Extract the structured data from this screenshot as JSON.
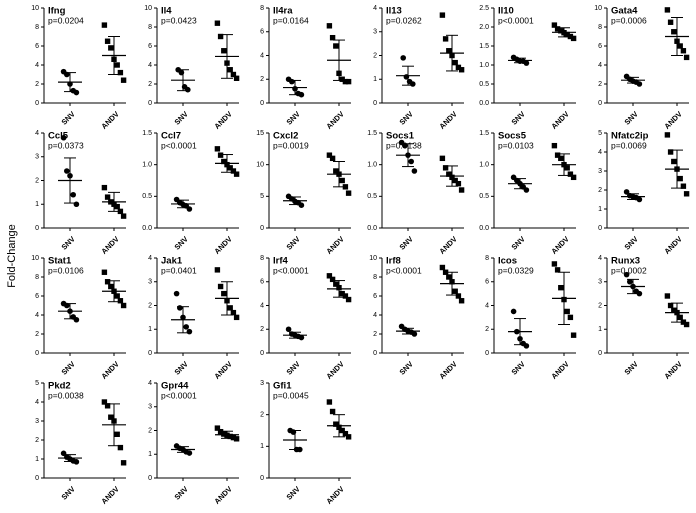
{
  "ylabel": "Fold-Change",
  "chart_data": [
    {
      "type": "dotplot",
      "title": "Ifng",
      "annotation": "p=0.0204",
      "categories": [
        "SNV",
        "ANDV"
      ],
      "markers": [
        "circle",
        "square"
      ],
      "color": "#000000",
      "ylim": [
        0,
        10
      ],
      "yticks": [
        0,
        2,
        4,
        6,
        8,
        10
      ],
      "values": [
        [
          3.3,
          3.0,
          2.0,
          1.3,
          1.1
        ],
        [
          8.2,
          6.5,
          5.8,
          4.6,
          4.0,
          3.2,
          2.4
        ]
      ],
      "means": [
        2.2,
        5.0
      ],
      "sd": [
        1.0,
        2.0
      ]
    },
    {
      "type": "dotplot",
      "title": "Il4",
      "annotation": "p=0.0423",
      "categories": [
        "SNV",
        "ANDV"
      ],
      "markers": [
        "circle",
        "square"
      ],
      "color": "#000000",
      "ylim": [
        0,
        10
      ],
      "yticks": [
        0,
        2,
        4,
        6,
        8,
        10
      ],
      "values": [
        [
          3.5,
          3.2,
          1.7,
          1.4
        ],
        [
          8.4,
          7.0,
          5.5,
          4.2,
          3.5,
          3.0,
          2.6
        ]
      ],
      "means": [
        2.4,
        4.9
      ],
      "sd": [
        1.1,
        2.3
      ]
    },
    {
      "type": "dotplot",
      "title": "Il4ra",
      "annotation": "p=0.0164",
      "categories": [
        "SNV",
        "ANDV"
      ],
      "markers": [
        "circle",
        "square"
      ],
      "color": "#000000",
      "ylim": [
        0,
        8
      ],
      "yticks": [
        0,
        2,
        4,
        6,
        8
      ],
      "values": [
        [
          2.0,
          1.8,
          1.2,
          0.8,
          0.7
        ],
        [
          6.5,
          5.5,
          4.8,
          2.5,
          2.0,
          1.8,
          1.8
        ]
      ],
      "means": [
        1.3,
        3.6
      ],
      "sd": [
        0.6,
        1.7
      ]
    },
    {
      "type": "dotplot",
      "title": "Il13",
      "annotation": "p=0.0262",
      "categories": [
        "SNV",
        "ANDV"
      ],
      "markers": [
        "circle",
        "square"
      ],
      "color": "#000000",
      "ylim": [
        0,
        4
      ],
      "yticks": [
        0,
        1,
        2,
        3,
        4
      ],
      "values": [
        [
          1.9,
          1.1,
          0.9,
          0.8
        ],
        [
          3.7,
          2.7,
          2.2,
          2.0,
          1.7,
          1.5,
          1.4
        ]
      ],
      "means": [
        1.15,
        2.1
      ],
      "sd": [
        0.4,
        0.75
      ]
    },
    {
      "type": "dotplot",
      "title": "Il10",
      "annotation": "p<0.0001",
      "categories": [
        "SNV",
        "ANDV"
      ],
      "markers": [
        "circle",
        "square"
      ],
      "color": "#000000",
      "ylim": [
        0,
        2.5
      ],
      "yticks": [
        {
          "value": 0,
          "label": "0.0"
        },
        0.5,
        {
          "value": 1,
          "label": "1.0"
        },
        1.5,
        {
          "value": 2,
          "label": "2.0"
        },
        2.5
      ],
      "values": [
        [
          1.2,
          1.15,
          1.1,
          1.1,
          1.05
        ],
        [
          2.05,
          1.95,
          1.9,
          1.85,
          1.8,
          1.75,
          1.7
        ]
      ],
      "means": [
        1.12,
        1.86
      ],
      "sd": [
        0.06,
        0.12
      ]
    },
    {
      "type": "dotplot",
      "title": "Gata4",
      "annotation": "p=0.0006",
      "categories": [
        "SNV",
        "ANDV"
      ],
      "markers": [
        "circle",
        "square"
      ],
      "color": "#000000",
      "ylim": [
        0,
        10
      ],
      "yticks": [
        0,
        2,
        4,
        6,
        8,
        10
      ],
      "values": [
        [
          2.8,
          2.5,
          2.3,
          2.2,
          2.0
        ],
        [
          9.8,
          8.5,
          7.5,
          6.5,
          6.0,
          5.5,
          4.8
        ]
      ],
      "means": [
        2.4,
        7.0
      ],
      "sd": [
        0.3,
        2.0
      ]
    },
    {
      "type": "dotplot",
      "title": "Ccl5",
      "annotation": "p=0.0373",
      "categories": [
        "SNV",
        "ANDV"
      ],
      "markers": [
        "circle",
        "square"
      ],
      "color": "#000000",
      "ylim": [
        0,
        4
      ],
      "yticks": [
        0,
        1,
        2,
        3,
        4
      ],
      "values": [
        [
          3.8,
          2.4,
          2.2,
          1.4,
          1.0
        ],
        [
          1.7,
          1.3,
          1.1,
          1.0,
          0.9,
          0.7,
          0.5
        ]
      ],
      "means": [
        2.0,
        1.1
      ],
      "sd": [
        0.95,
        0.4
      ]
    },
    {
      "type": "dotplot",
      "title": "Ccl7",
      "annotation": "p<0.0001",
      "categories": [
        "SNV",
        "ANDV"
      ],
      "markers": [
        "circle",
        "square"
      ],
      "color": "#000000",
      "ylim": [
        0,
        1.5
      ],
      "yticks": [
        {
          "value": 0,
          "label": "0.0"
        },
        0.5,
        {
          "value": 1,
          "label": "1.0"
        },
        1.5
      ],
      "values": [
        [
          0.45,
          0.4,
          0.37,
          0.35,
          0.3
        ],
        [
          1.25,
          1.15,
          1.05,
          1.0,
          0.95,
          0.9,
          0.85
        ]
      ],
      "means": [
        0.38,
        1.02
      ],
      "sd": [
        0.06,
        0.14
      ]
    },
    {
      "type": "dotplot",
      "title": "Cxcl2",
      "annotation": "p=0.0019",
      "categories": [
        "SNV",
        "ANDV"
      ],
      "markers": [
        "circle",
        "square"
      ],
      "color": "#000000",
      "ylim": [
        0,
        15
      ],
      "yticks": [
        0,
        5,
        10,
        15
      ],
      "values": [
        [
          5.0,
          4.6,
          4.2,
          4.0,
          3.6
        ],
        [
          11.5,
          11.0,
          9.0,
          8.5,
          7.5,
          6.5,
          5.5
        ]
      ],
      "means": [
        4.3,
        8.5
      ],
      "sd": [
        0.6,
        2.0
      ]
    },
    {
      "type": "dotplot",
      "title": "Socs1",
      "annotation": "p=0.0138",
      "categories": [
        "SNV",
        "ANDV"
      ],
      "markers": [
        "circle",
        "square"
      ],
      "color": "#000000",
      "ylim": [
        0,
        1.5
      ],
      "yticks": [
        {
          "value": 0,
          "label": "0.0"
        },
        0.5,
        {
          "value": 1,
          "label": "1.0"
        },
        1.5
      ],
      "values": [
        [
          1.35,
          1.3,
          1.15,
          1.05,
          0.9
        ],
        [
          1.1,
          0.95,
          0.85,
          0.8,
          0.75,
          0.7,
          0.6
        ]
      ],
      "means": [
        1.15,
        0.82
      ],
      "sd": [
        0.18,
        0.16
      ]
    },
    {
      "type": "dotplot",
      "title": "Socs5",
      "annotation": "p=0.0103",
      "categories": [
        "SNV",
        "ANDV"
      ],
      "markers": [
        "circle",
        "square"
      ],
      "color": "#000000",
      "ylim": [
        0,
        1.5
      ],
      "yticks": [
        {
          "value": 0,
          "label": "0.0"
        },
        0.5,
        {
          "value": 1,
          "label": "1.0"
        },
        1.5
      ],
      "values": [
        [
          0.8,
          0.75,
          0.7,
          0.65,
          0.6
        ],
        [
          1.3,
          1.15,
          1.1,
          1.0,
          0.95,
          0.85,
          0.8
        ]
      ],
      "means": [
        0.7,
        1.0
      ],
      "sd": [
        0.08,
        0.17
      ]
    },
    {
      "type": "dotplot",
      "title": "Nfatc2ip",
      "annotation": "p=0.0069",
      "categories": [
        "SNV",
        "ANDV"
      ],
      "markers": [
        "circle",
        "square"
      ],
      "color": "#000000",
      "ylim": [
        0,
        5
      ],
      "yticks": [
        0,
        1,
        2,
        3,
        4,
        5
      ],
      "values": [
        [
          1.9,
          1.7,
          1.65,
          1.6,
          1.5
        ],
        [
          4.9,
          4.0,
          3.5,
          3.1,
          2.6,
          2.2,
          1.8
        ]
      ],
      "means": [
        1.65,
        3.1
      ],
      "sd": [
        0.15,
        1.0
      ]
    },
    {
      "type": "dotplot",
      "title": "Stat1",
      "annotation": "p=0.0106",
      "categories": [
        "SNV",
        "ANDV"
      ],
      "markers": [
        "circle",
        "square"
      ],
      "color": "#000000",
      "ylim": [
        0,
        10
      ],
      "yticks": [
        0,
        2,
        4,
        6,
        8,
        10
      ],
      "values": [
        [
          5.2,
          5.0,
          4.4,
          3.8,
          3.5
        ],
        [
          8.5,
          7.5,
          7.0,
          6.5,
          6.0,
          5.5,
          5.0
        ]
      ],
      "means": [
        4.4,
        6.5
      ],
      "sd": [
        0.8,
        1.1
      ]
    },
    {
      "type": "dotplot",
      "title": "Jak1",
      "annotation": "p=0.0401",
      "categories": [
        "SNV",
        "ANDV"
      ],
      "markers": [
        "circle",
        "square"
      ],
      "color": "#000000",
      "ylim": [
        0,
        4
      ],
      "yticks": [
        0,
        1,
        2,
        3,
        4
      ],
      "values": [
        [
          2.5,
          1.9,
          1.5,
          1.1,
          0.9
        ],
        [
          3.5,
          2.8,
          2.5,
          2.2,
          1.9,
          1.7,
          1.5
        ]
      ],
      "means": [
        1.4,
        2.3
      ],
      "sd": [
        0.55,
        0.7
      ]
    },
    {
      "type": "dotplot",
      "title": "Irf4",
      "annotation": "p<0.0001",
      "categories": [
        "SNV",
        "ANDV"
      ],
      "markers": [
        "circle",
        "square"
      ],
      "color": "#000000",
      "ylim": [
        0,
        8
      ],
      "yticks": [
        0,
        2,
        4,
        6,
        8
      ],
      "values": [
        [
          2.0,
          1.6,
          1.5,
          1.4,
          1.3
        ],
        [
          6.5,
          6.2,
          5.8,
          5.5,
          5.0,
          4.8,
          4.5
        ]
      ],
      "means": [
        1.5,
        5.4
      ],
      "sd": [
        0.25,
        0.7
      ]
    },
    {
      "type": "dotplot",
      "title": "Irf8",
      "annotation": "p<0.0001",
      "categories": [
        "SNV",
        "ANDV"
      ],
      "markers": [
        "circle",
        "square"
      ],
      "color": "#000000",
      "ylim": [
        0,
        10
      ],
      "yticks": [
        0,
        2,
        4,
        6,
        8,
        10
      ],
      "values": [
        [
          2.8,
          2.5,
          2.3,
          2.2,
          2.0
        ],
        [
          9.0,
          8.5,
          8.0,
          7.5,
          6.5,
          6.0,
          5.5
        ]
      ],
      "means": [
        2.3,
        7.3
      ],
      "sd": [
        0.3,
        1.2
      ]
    },
    {
      "type": "dotplot",
      "title": "Icos",
      "annotation": "p=0.0329",
      "categories": [
        "SNV",
        "ANDV"
      ],
      "markers": [
        "circle",
        "square"
      ],
      "color": "#000000",
      "ylim": [
        0,
        8
      ],
      "yticks": [
        0,
        2,
        4,
        6,
        8
      ],
      "values": [
        [
          3.5,
          1.8,
          1.2,
          0.8,
          0.6
        ],
        [
          7.5,
          7.0,
          5.5,
          4.5,
          3.5,
          3.0,
          1.5
        ]
      ],
      "means": [
        1.8,
        4.6
      ],
      "sd": [
        1.1,
        2.2
      ]
    },
    {
      "type": "dotplot",
      "title": "Runx3",
      "annotation": "p=0.0002",
      "categories": [
        "SNV",
        "ANDV"
      ],
      "markers": [
        "circle",
        "square"
      ],
      "color": "#000000",
      "ylim": [
        0,
        4
      ],
      "yticks": [
        0,
        1,
        2,
        3,
        4
      ],
      "values": [
        [
          3.3,
          3.0,
          2.8,
          2.6,
          2.5
        ],
        [
          2.4,
          2.0,
          1.8,
          1.7,
          1.5,
          1.3,
          1.2
        ]
      ],
      "means": [
        2.8,
        1.7
      ],
      "sd": [
        0.3,
        0.4
      ]
    },
    {
      "type": "dotplot",
      "title": "Pkd2",
      "annotation": "p=0.0038",
      "categories": [
        "SNV",
        "ANDV"
      ],
      "markers": [
        "circle",
        "square"
      ],
      "color": "#000000",
      "ylim": [
        0,
        5
      ],
      "yticks": [
        0,
        1,
        2,
        3,
        4,
        5
      ],
      "values": [
        [
          1.3,
          1.1,
          1.0,
          0.9,
          0.85
        ],
        [
          4.0,
          3.8,
          3.2,
          3.0,
          2.3,
          1.6,
          0.8
        ]
      ],
      "means": [
        1.05,
        2.8
      ],
      "sd": [
        0.18,
        1.1
      ]
    },
    {
      "type": "dotplot",
      "title": "Gpr44",
      "annotation": "p<0.0001",
      "categories": [
        "SNV",
        "ANDV"
      ],
      "markers": [
        "circle",
        "square"
      ],
      "color": "#000000",
      "ylim": [
        0,
        4
      ],
      "yticks": [
        0,
        1,
        2,
        3,
        4
      ],
      "values": [
        [
          1.35,
          1.25,
          1.2,
          1.1,
          1.05
        ],
        [
          2.1,
          1.95,
          1.85,
          1.8,
          1.75,
          1.7,
          1.65
        ]
      ],
      "means": [
        1.2,
        1.82
      ],
      "sd": [
        0.12,
        0.15
      ]
    },
    {
      "type": "dotplot",
      "title": "Gfi1",
      "annotation": "p=0.0045",
      "categories": [
        "SNV",
        "ANDV"
      ],
      "markers": [
        "circle",
        "square"
      ],
      "color": "#000000",
      "ylim": [
        0,
        3
      ],
      "yticks": [
        0,
        1,
        2,
        3
      ],
      "values": [
        [
          1.5,
          1.45,
          0.9,
          0.9
        ],
        [
          2.4,
          2.1,
          1.7,
          1.6,
          1.5,
          1.4,
          1.3
        ]
      ],
      "means": [
        1.2,
        1.65
      ],
      "sd": [
        0.3,
        0.35
      ]
    }
  ]
}
